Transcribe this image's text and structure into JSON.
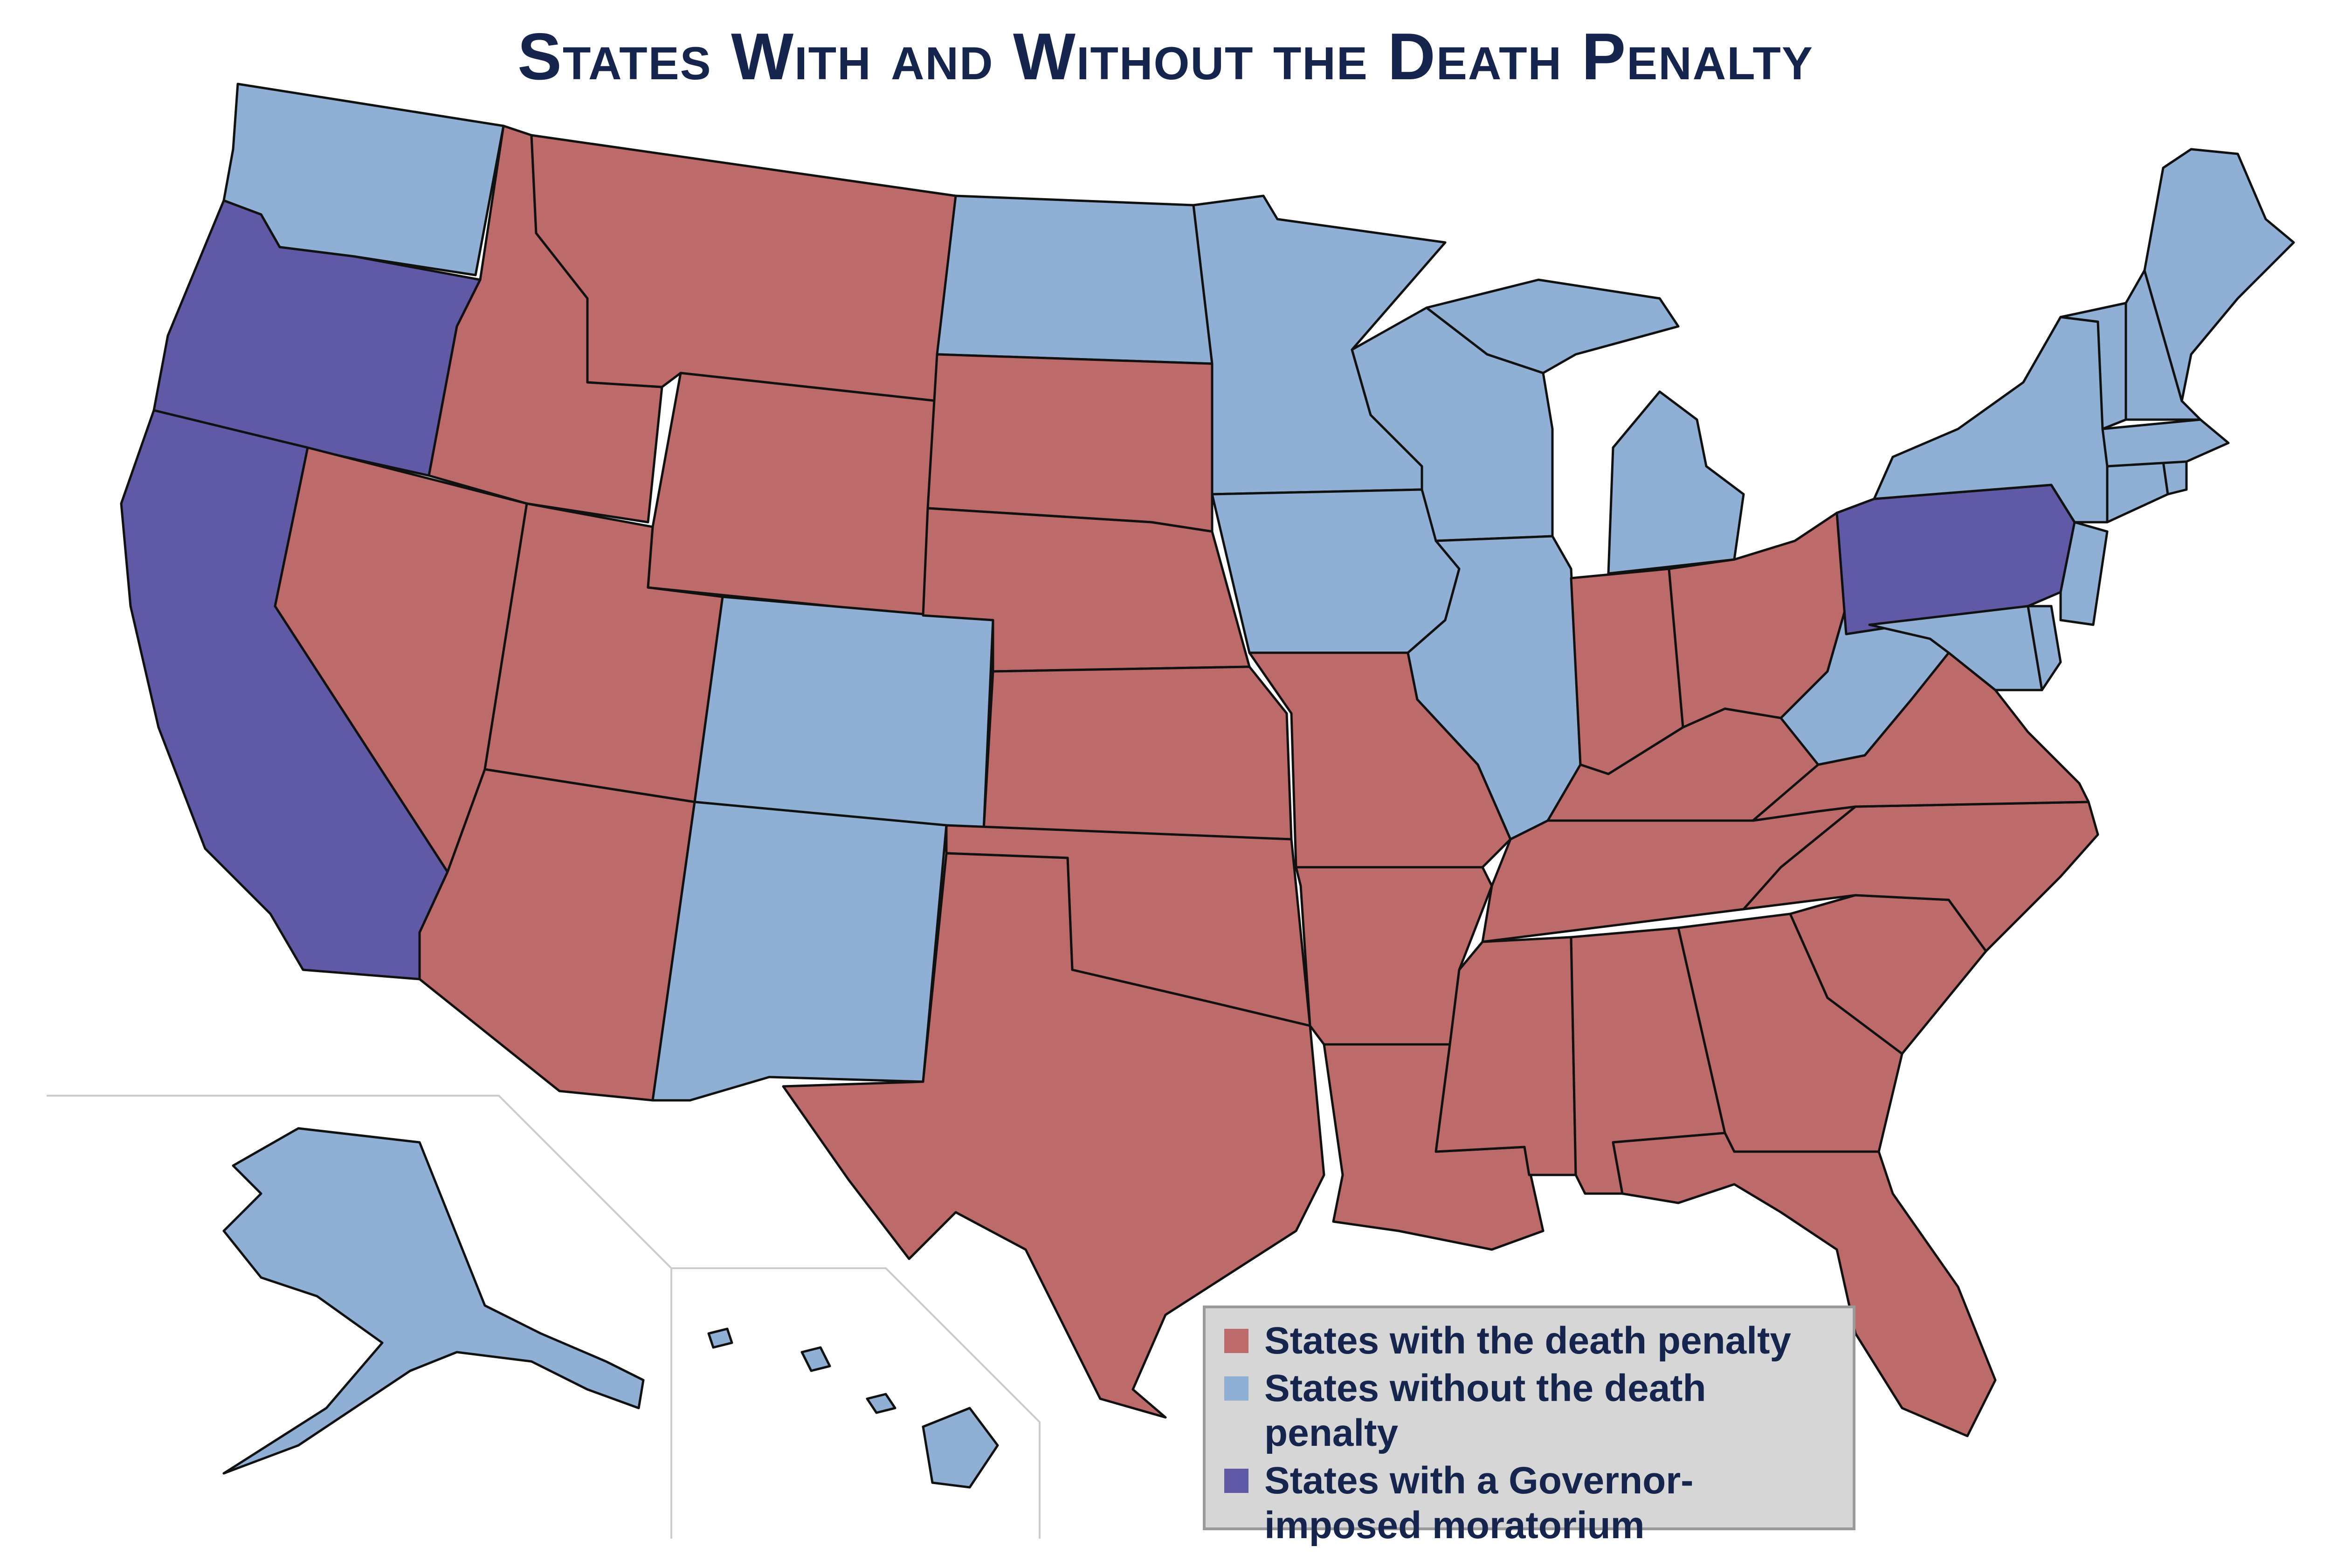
{
  "title": "States With and Without the Death Penalty",
  "colors": {
    "death_penalty": "#bd6a6a",
    "no_death_penalty": "#8fafd4",
    "moratorium": "#6059a6",
    "outline": "#111111",
    "title_text": "#15254d",
    "legend_bg": "#d6d6d6"
  },
  "legend": [
    {
      "key": "death_penalty",
      "label": "States with the death penalty"
    },
    {
      "key": "no_death_penalty",
      "label": "States without the death penalty"
    },
    {
      "key": "moratorium",
      "label": "States with a Governor-imposed moratorium"
    }
  ],
  "states": {
    "death_penalty": [
      "Montana",
      "Idaho",
      "Wyoming",
      "South Dakota",
      "Nebraska",
      "Kansas",
      "Oklahoma",
      "Texas",
      "Utah",
      "Nevada",
      "Arizona",
      "Missouri",
      "Arkansas",
      "Louisiana",
      "Mississippi",
      "Alabama",
      "Georgia",
      "Florida",
      "South Carolina",
      "North Carolina",
      "Tennessee",
      "Kentucky",
      "Indiana",
      "Ohio",
      "Virginia"
    ],
    "no_death_penalty": [
      "Washington",
      "North Dakota",
      "Minnesota",
      "Iowa",
      "Wisconsin",
      "Illinois",
      "Michigan",
      "Colorado",
      "New Mexico",
      "West Virginia",
      "New York",
      "Vermont",
      "New Hampshire",
      "Maine",
      "Massachusetts",
      "Rhode Island",
      "Connecticut",
      "New Jersey",
      "Delaware",
      "Maryland",
      "Alaska",
      "Hawaii"
    ],
    "moratorium": [
      "California",
      "Oregon",
      "Pennsylvania"
    ]
  }
}
